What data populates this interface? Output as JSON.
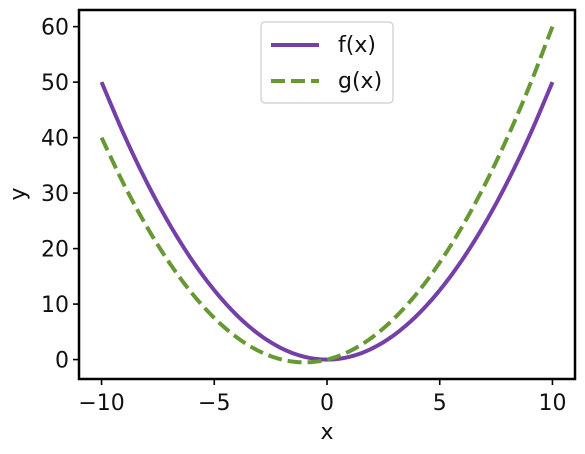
{
  "chart_data": {
    "type": "line",
    "title": "",
    "xlabel": "x",
    "ylabel": "y",
    "xlim": [
      -11,
      11
    ],
    "ylim": [
      -3.5,
      63
    ],
    "x_ticks": [
      -10,
      -5,
      0,
      5,
      10
    ],
    "x_tick_labels": [
      "−10",
      "−5",
      "0",
      "5",
      "10"
    ],
    "y_ticks": [
      0,
      10,
      20,
      30,
      40,
      50,
      60
    ],
    "y_tick_labels": [
      "0",
      "10",
      "20",
      "30",
      "40",
      "50",
      "60"
    ],
    "grid": false,
    "legend_position": "top-center",
    "x": [
      -10,
      -9,
      -8,
      -7,
      -6,
      -5,
      -4,
      -3,
      -2,
      -1,
      0,
      1,
      2,
      3,
      4,
      5,
      6,
      7,
      8,
      9,
      10
    ],
    "series": [
      {
        "name": "f(x)",
        "color": "#7440a8",
        "style": "solid",
        "values": [
          50,
          40.5,
          32,
          24.5,
          18,
          12.5,
          8,
          4.5,
          2,
          0.5,
          0,
          0.5,
          2,
          4.5,
          8,
          12.5,
          18,
          24.5,
          32,
          40.5,
          50
        ]
      },
      {
        "name": "g(x)",
        "color": "#669933",
        "style": "dashed",
        "values": [
          40,
          31.5,
          24,
          17.5,
          12,
          7.5,
          4,
          1.5,
          0,
          -0.5,
          0,
          1.5,
          4,
          7.5,
          12,
          17.5,
          24,
          31.5,
          40,
          49.5,
          60
        ]
      }
    ]
  }
}
